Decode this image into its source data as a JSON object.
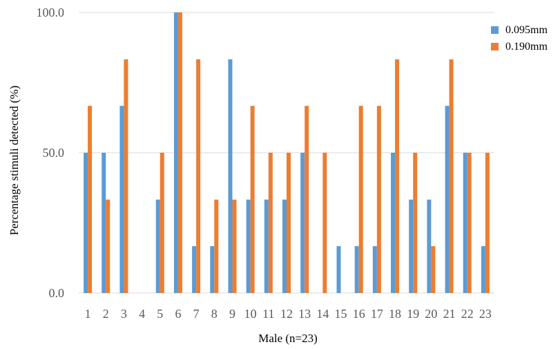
{
  "chart_data": {
    "type": "bar",
    "categories": [
      "1",
      "2",
      "3",
      "4",
      "5",
      "6",
      "7",
      "8",
      "9",
      "10",
      "11",
      "12",
      "13",
      "14",
      "15",
      "16",
      "17",
      "18",
      "19",
      "20",
      "21",
      "22",
      "23"
    ],
    "series": [
      {
        "name": "0.095mm",
        "color": "#5B9BD5",
        "values": [
          50,
          50,
          66.7,
          0,
          33.3,
          100,
          16.7,
          16.7,
          83.3,
          33.3,
          33.3,
          33.3,
          50,
          0,
          16.7,
          16.7,
          16.7,
          50,
          33.3,
          33.3,
          66.7,
          50,
          16.7
        ]
      },
      {
        "name": "0.190mm",
        "color": "#ED7D31",
        "values": [
          66.7,
          33.3,
          83.3,
          0,
          50,
          100,
          83.3,
          33.3,
          33.3,
          66.7,
          50,
          50,
          66.7,
          50,
          0,
          66.7,
          66.7,
          83.3,
          50,
          16.7,
          83.3,
          50,
          50
        ]
      }
    ],
    "yticks": [
      "0.0",
      "50.0",
      "100.0"
    ],
    "xlabel": "Male (n=23)",
    "ylabel": "Percentage stimuli detected (%)",
    "ylim": [
      0,
      100
    ],
    "grid": "horizontal",
    "legend_position": "top-right"
  }
}
